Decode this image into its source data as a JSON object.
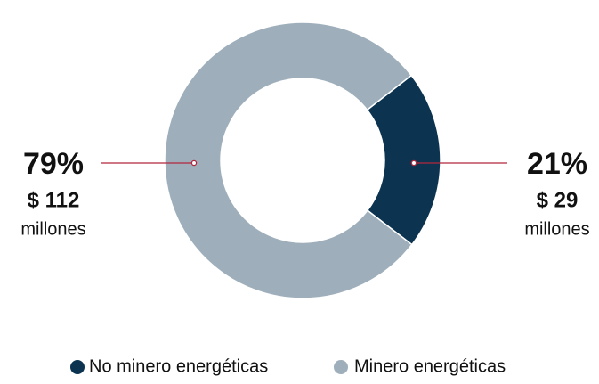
{
  "chart_data": {
    "type": "pie",
    "donut": true,
    "categories": [
      "No minero energéticas",
      "Minero energéticas"
    ],
    "values": [
      21,
      79
    ],
    "value_labels": [
      "21%",
      "79%"
    ],
    "amount_labels": [
      "$ 29",
      "$ 112"
    ],
    "amount_unit": "millones",
    "colors": [
      "#0c3451",
      "#9eafbb"
    ],
    "leader_color": "#b3263c",
    "legend": "bottom"
  }
}
